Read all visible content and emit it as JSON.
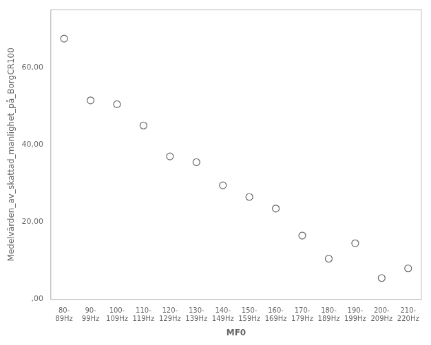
{
  "chart_data": {
    "type": "scatter",
    "categories": [
      "80-\n89Hz",
      "90-\n99Hz",
      "100-\n109Hz",
      "110-\n119Hz",
      "120-\n129Hz",
      "130-\n139Hz",
      "140-\n149Hz",
      "150-\n159Hz",
      "160-\n169Hz",
      "170-\n179Hz",
      "180-\n189Hz",
      "190-\n199Hz",
      "200-\n209Hz",
      "210-\n220Hz"
    ],
    "values": [
      67.5,
      51.5,
      50.5,
      45.0,
      37.0,
      35.5,
      29.5,
      26.5,
      23.5,
      16.5,
      10.5,
      14.5,
      5.5,
      8.0
    ],
    "xlabel": "MF0",
    "ylabel": "Medelvärden_av_skattad_manlighet_på_BorgCR100",
    "ylim": [
      0,
      75
    ],
    "yticks": [
      {
        "value": 0,
        "label": ",00"
      },
      {
        "value": 20,
        "label": "20,00"
      },
      {
        "value": 40,
        "label": "40,00"
      },
      {
        "value": 60,
        "label": "60,00"
      }
    ],
    "color": "#666666",
    "marker": "circle",
    "grid": false
  }
}
